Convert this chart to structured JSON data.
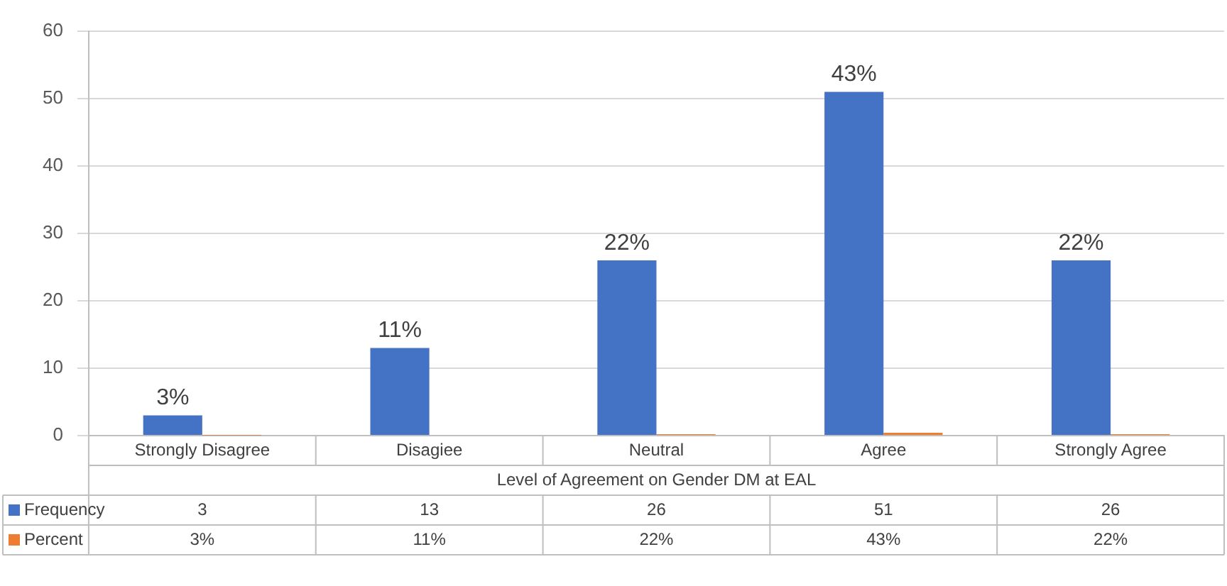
{
  "chart_data": {
    "type": "bar",
    "xlabel": "Level of Agreement on Gender DM at EAL",
    "categories": [
      "Strongly Disagree",
      "Disagiee",
      "Neutral",
      "Agree",
      "Strongly Agree"
    ],
    "series": [
      {
        "name": "Frequency",
        "color": "#4472c4",
        "values": [
          3,
          13,
          26,
          51,
          26
        ]
      },
      {
        "name": "Percent",
        "color": "#ed7d31",
        "values": [
          0.03,
          0.11,
          0.22,
          0.43,
          0.22
        ],
        "value_labels": [
          "3%",
          "11%",
          "22%",
          "43%",
          "22%"
        ]
      }
    ],
    "data_labels": true,
    "legend": "bottom left",
    "ylim": [
      0,
      60
    ],
    "yticks": [
      0,
      10,
      20,
      30,
      40,
      50,
      60
    ],
    "grid": "y",
    "annotations": [
      {
        "text": "3%",
        "x": "Strongly Disagree",
        "y": 3
      },
      {
        "text": "11%",
        "x": "Disagiee",
        "y": 13
      },
      {
        "text": "22%",
        "x": "Neutral",
        "y": 26
      },
      {
        "text": "43%",
        "x": "Agree",
        "y": 51
      },
      {
        "text": "22%",
        "x": "Strongly Agree",
        "y": 26
      }
    ]
  }
}
